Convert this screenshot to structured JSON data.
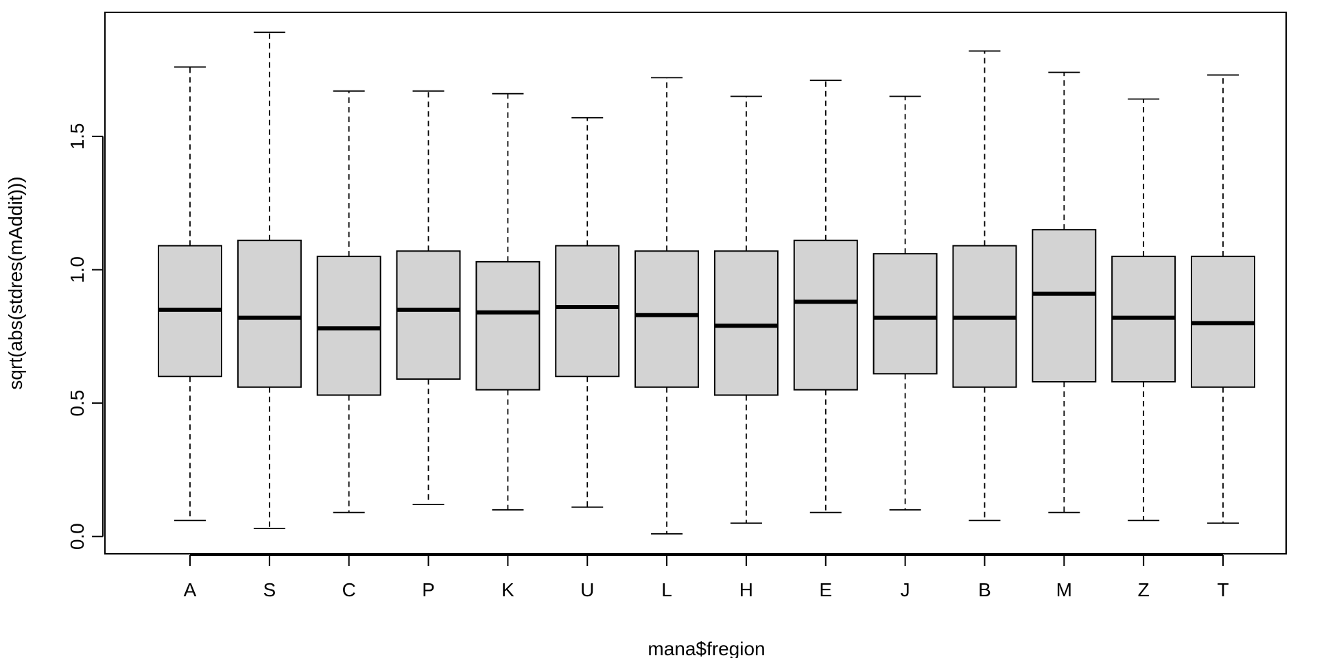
{
  "chart_data": {
    "type": "boxplot",
    "title": "",
    "xlabel": "mana$fregion",
    "ylabel": "sqrt(abs(stdres(mAddit)))",
    "ylim": [
      -0.065,
      1.965
    ],
    "yticks": [
      0.0,
      0.5,
      1.0,
      1.5
    ],
    "ytick_labels": [
      "0.0",
      "0.5",
      "1.0",
      "1.5"
    ],
    "grid": false,
    "legend": "none",
    "box_color": "#d3d3d3",
    "categories": [
      "A",
      "S",
      "C",
      "P",
      "K",
      "U",
      "L",
      "H",
      "E",
      "J",
      "B",
      "M",
      "Z",
      "T"
    ],
    "boxes": [
      {
        "min": 0.06,
        "q1": 0.6,
        "median": 0.85,
        "q3": 1.09,
        "max": 1.76
      },
      {
        "min": 0.03,
        "q1": 0.56,
        "median": 0.82,
        "q3": 1.11,
        "max": 1.89
      },
      {
        "min": 0.09,
        "q1": 0.53,
        "median": 0.78,
        "q3": 1.05,
        "max": 1.67
      },
      {
        "min": 0.12,
        "q1": 0.59,
        "median": 0.85,
        "q3": 1.07,
        "max": 1.67
      },
      {
        "min": 0.1,
        "q1": 0.55,
        "median": 0.84,
        "q3": 1.03,
        "max": 1.66
      },
      {
        "min": 0.11,
        "q1": 0.6,
        "median": 0.86,
        "q3": 1.09,
        "max": 1.57
      },
      {
        "min": 0.01,
        "q1": 0.56,
        "median": 0.83,
        "q3": 1.07,
        "max": 1.72
      },
      {
        "min": 0.05,
        "q1": 0.53,
        "median": 0.79,
        "q3": 1.07,
        "max": 1.65
      },
      {
        "min": 0.09,
        "q1": 0.55,
        "median": 0.88,
        "q3": 1.11,
        "max": 1.71
      },
      {
        "min": 0.1,
        "q1": 0.61,
        "median": 0.82,
        "q3": 1.06,
        "max": 1.65
      },
      {
        "min": 0.06,
        "q1": 0.56,
        "median": 0.82,
        "q3": 1.09,
        "max": 1.82
      },
      {
        "min": 0.09,
        "q1": 0.58,
        "median": 0.91,
        "q3": 1.15,
        "max": 1.74
      },
      {
        "min": 0.06,
        "q1": 0.58,
        "median": 0.82,
        "q3": 1.05,
        "max": 1.64
      },
      {
        "min": 0.05,
        "q1": 0.56,
        "median": 0.8,
        "q3": 1.05,
        "max": 1.73
      }
    ]
  }
}
